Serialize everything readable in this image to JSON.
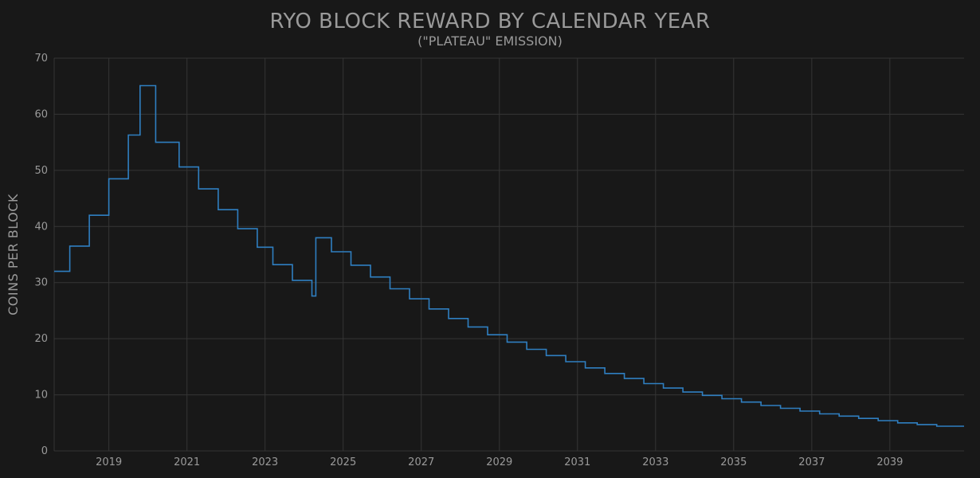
{
  "chart_data": {
    "type": "line",
    "step": true,
    "title": "RYO BLOCK REWARD BY CALENDAR YEAR",
    "subtitle": "(\"PLATEAU\" EMISSION)",
    "xlabel": "",
    "ylabel": "COINS PER BLOCK",
    "xlim": [
      2017.6,
      2040.9
    ],
    "ylim": [
      0,
      70
    ],
    "yticks": [
      0,
      10,
      20,
      30,
      40,
      50,
      60,
      70
    ],
    "xticks": [
      2019,
      2021,
      2023,
      2025,
      2027,
      2029,
      2031,
      2033,
      2035,
      2037,
      2039
    ],
    "grid": true,
    "legend": "none",
    "colors": {
      "background": "#181818",
      "grid": "#353535",
      "line": "#2f7fc1",
      "text": "#9a9a9a"
    },
    "series": [
      {
        "x": [
          2017.6,
          2018.0,
          2018.5,
          2019.0,
          2019.5,
          2019.8,
          2020.2,
          2020.8,
          2021.3,
          2021.8,
          2022.3,
          2022.8,
          2023.2,
          2023.7,
          2024.2,
          2024.3,
          2024.7,
          2025.2,
          2025.7,
          2026.2,
          2026.7,
          2027.2,
          2027.7,
          2028.2,
          2028.7,
          2029.2,
          2029.7,
          2030.2,
          2030.7,
          2031.2,
          2031.7,
          2032.2,
          2032.7,
          2033.2,
          2033.7,
          2034.2,
          2034.7,
          2035.2,
          2035.7,
          2036.2,
          2036.7,
          2037.2,
          2037.7,
          2038.2,
          2038.7,
          2039.2,
          2039.7,
          2040.2,
          2040.9
        ],
        "values": [
          32.0,
          36.5,
          42.0,
          48.5,
          56.3,
          65.1,
          55.0,
          50.6,
          46.7,
          43.0,
          39.6,
          36.3,
          33.2,
          30.4,
          27.6,
          38.0,
          35.5,
          33.1,
          31.0,
          28.9,
          27.1,
          25.3,
          23.6,
          22.1,
          20.7,
          19.4,
          18.1,
          17.0,
          15.9,
          14.8,
          13.8,
          12.9,
          12.0,
          11.2,
          10.5,
          9.9,
          9.3,
          8.7,
          8.1,
          7.6,
          7.1,
          6.6,
          6.2,
          5.8,
          5.4,
          5.0,
          4.7,
          4.4,
          4.4
        ]
      }
    ]
  }
}
